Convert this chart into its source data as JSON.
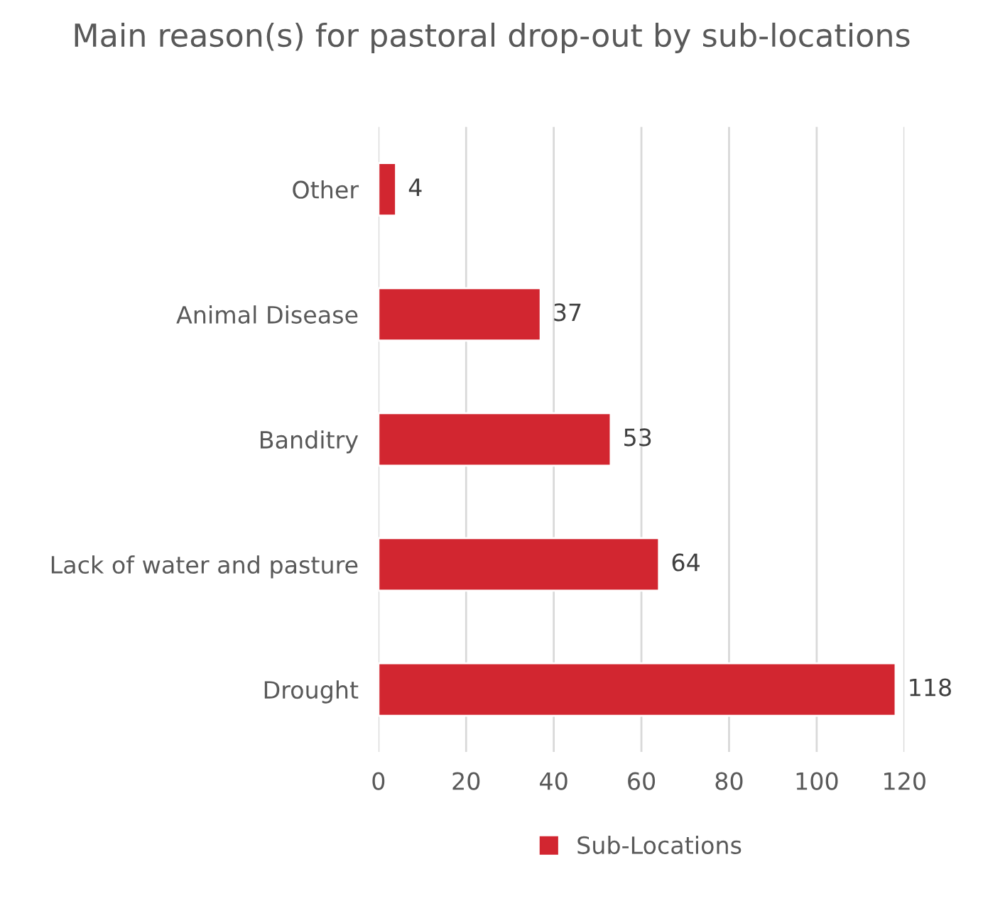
{
  "chart_data": {
    "type": "bar",
    "orientation": "horizontal",
    "title": "Main reason(s) for pastoral drop-out by sub-locations",
    "categories": [
      "Other",
      "Animal Disease",
      "Banditry",
      "Lack of water and pasture",
      "Drought"
    ],
    "series": [
      {
        "name": "Sub-Locations",
        "color": "#d22630",
        "values": [
          4,
          37,
          53,
          64,
          118
        ]
      }
    ],
    "xlim": [
      0,
      120
    ],
    "xticks": [
      0,
      20,
      40,
      60,
      80,
      100,
      120
    ],
    "grid": "x",
    "legend": "bottom",
    "data_labels": true
  }
}
